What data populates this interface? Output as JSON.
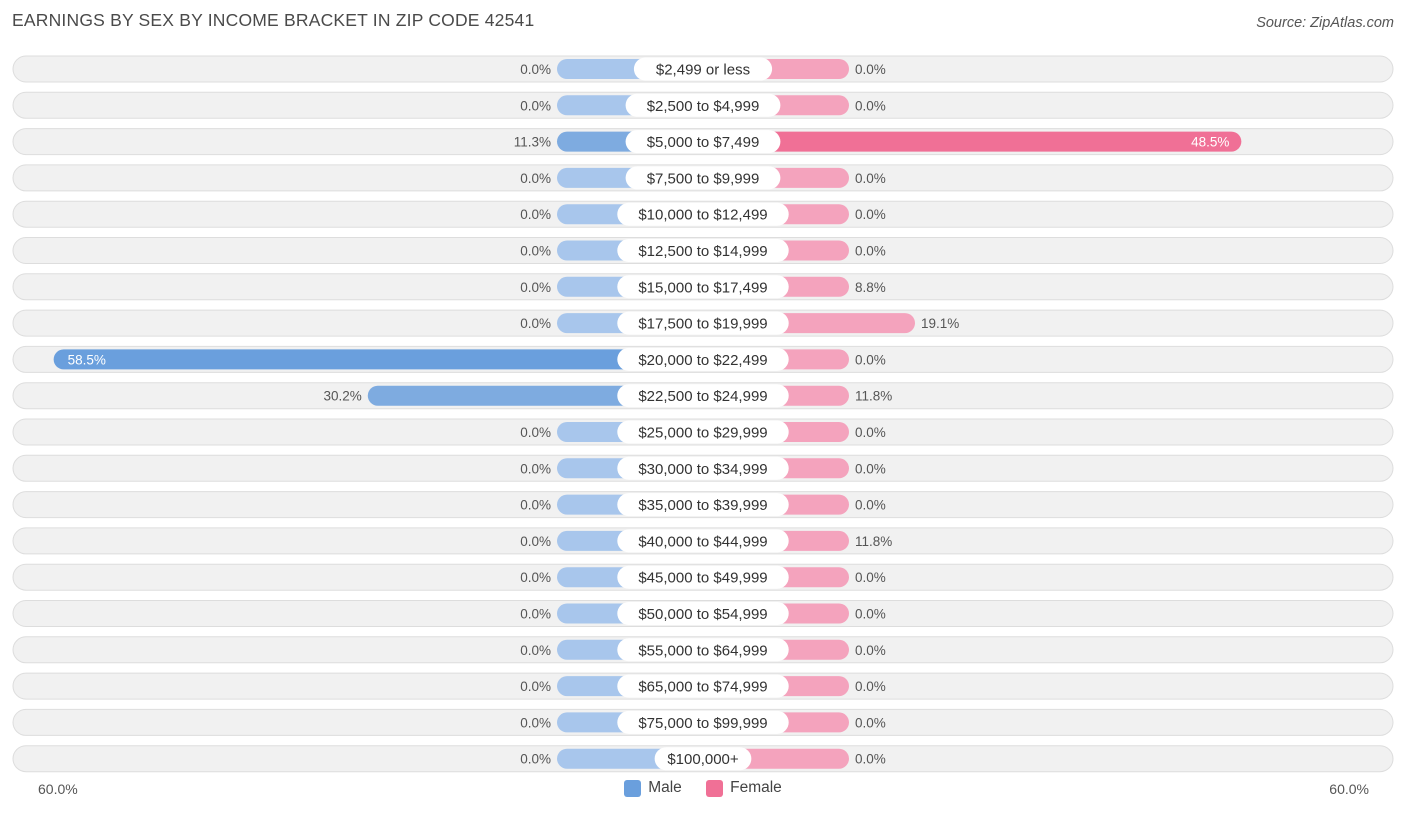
{
  "header": {
    "title": "EARNINGS BY SEX BY INCOME BRACKET IN ZIP CODE 42541",
    "source": "Source: ZipAtlas.com"
  },
  "colors": {
    "male_full": "#6a9fdd",
    "male_light": "#a8c6ec",
    "female_full": "#f07096",
    "female_light": "#f4a3bd"
  },
  "legend": {
    "male_label": "Male",
    "female_label": "Female"
  },
  "axis": {
    "left_label": "60.0%",
    "right_label": "60.0%"
  },
  "chart_data": {
    "type": "bar",
    "orientation": "horizontal-diverging",
    "title": "EARNINGS BY SEX BY INCOME BRACKET IN ZIP CODE 42541",
    "xlim": [
      -60,
      60
    ],
    "categories": [
      "$2,499 or less",
      "$2,500 to $4,999",
      "$5,000 to $7,499",
      "$7,500 to $9,999",
      "$10,000 to $12,499",
      "$12,500 to $14,999",
      "$15,000 to $17,499",
      "$17,500 to $19,999",
      "$20,000 to $22,499",
      "$22,500 to $24,999",
      "$25,000 to $29,999",
      "$30,000 to $34,999",
      "$35,000 to $39,999",
      "$40,000 to $44,999",
      "$45,000 to $49,999",
      "$50,000 to $54,999",
      "$55,000 to $64,999",
      "$65,000 to $74,999",
      "$75,000 to $99,999",
      "$100,000+"
    ],
    "series": [
      {
        "name": "Male",
        "values": [
          0.0,
          0.0,
          11.3,
          0.0,
          0.0,
          0.0,
          0.0,
          0.0,
          58.5,
          30.2,
          0.0,
          0.0,
          0.0,
          0.0,
          0.0,
          0.0,
          0.0,
          0.0,
          0.0,
          0.0
        ],
        "labels": [
          "0.0%",
          "0.0%",
          "11.3%",
          "0.0%",
          "0.0%",
          "0.0%",
          "0.0%",
          "0.0%",
          "58.5%",
          "30.2%",
          "0.0%",
          "0.0%",
          "0.0%",
          "0.0%",
          "0.0%",
          "0.0%",
          "0.0%",
          "0.0%",
          "0.0%",
          "0.0%"
        ]
      },
      {
        "name": "Female",
        "values": [
          0.0,
          0.0,
          48.5,
          0.0,
          0.0,
          0.0,
          8.8,
          19.1,
          0.0,
          11.8,
          0.0,
          0.0,
          0.0,
          11.8,
          0.0,
          0.0,
          0.0,
          0.0,
          0.0,
          0.0
        ],
        "labels": [
          "0.0%",
          "0.0%",
          "48.5%",
          "0.0%",
          "0.0%",
          "0.0%",
          "8.8%",
          "19.1%",
          "0.0%",
          "11.8%",
          "0.0%",
          "0.0%",
          "0.0%",
          "11.8%",
          "0.0%",
          "0.0%",
          "0.0%",
          "0.0%",
          "0.0%",
          "0.0%"
        ]
      }
    ],
    "legend": [
      "Male",
      "Female"
    ]
  }
}
